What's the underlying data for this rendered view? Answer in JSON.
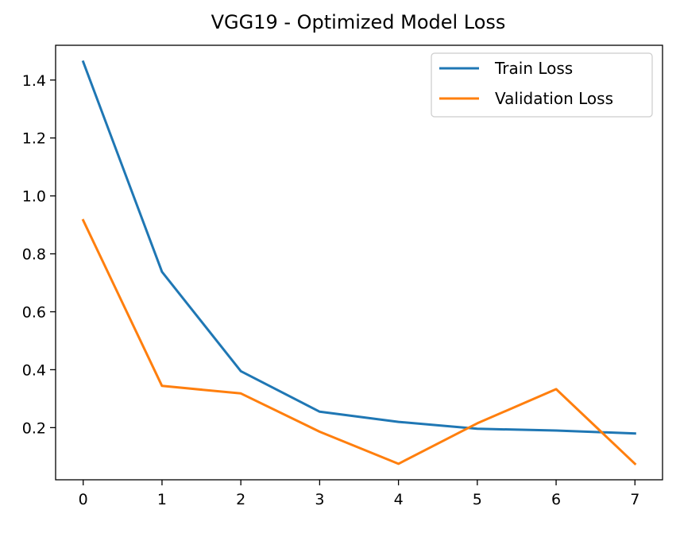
{
  "chart_data": {
    "type": "line",
    "title": "VGG19 - Optimized Model Loss",
    "xlabel": "",
    "ylabel": "",
    "x": [
      0,
      1,
      2,
      3,
      4,
      5,
      6,
      7
    ],
    "xlim": [
      -0.35,
      7.35
    ],
    "ylim": [
      0.02,
      1.52
    ],
    "xticks": [
      0,
      1,
      2,
      3,
      4,
      5,
      6,
      7
    ],
    "yticks": [
      0.2,
      0.4,
      0.6,
      0.8,
      1.0,
      1.2,
      1.4
    ],
    "grid": false,
    "legend_position": "top-right",
    "series": [
      {
        "name": "Train Loss",
        "color": "#1f77b4",
        "values": [
          1.463,
          0.738,
          0.395,
          0.255,
          0.22,
          0.196,
          0.19,
          0.18
        ]
      },
      {
        "name": "Validation Loss",
        "color": "#ff7f0e",
        "values": [
          0.916,
          0.344,
          0.318,
          0.186,
          0.075,
          0.215,
          0.333,
          0.075
        ]
      }
    ]
  }
}
